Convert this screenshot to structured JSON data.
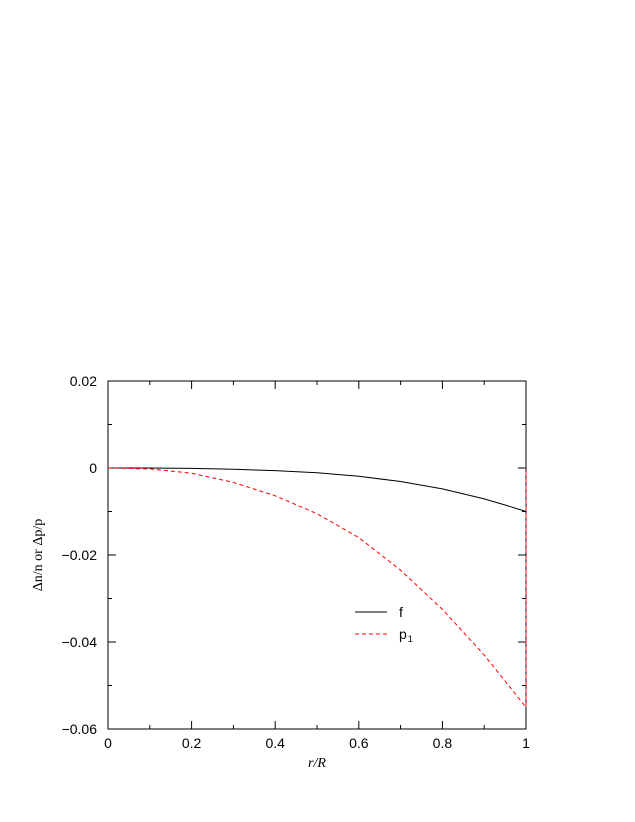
{
  "chart_data": {
    "type": "line",
    "xlabel": "r/R",
    "ylabel": "Δn/n or Δp/p",
    "xlim": [
      0,
      1
    ],
    "ylim": [
      -0.06,
      0.02
    ],
    "x_ticks": [
      "0",
      "0.2",
      "0.4",
      "0.6",
      "0.8",
      "1"
    ],
    "y_ticks": [
      "0.02",
      "0",
      "−0.02",
      "−0.04",
      "−0.06"
    ],
    "grid": false,
    "legend_position": "center-right",
    "series": [
      {
        "name": "f",
        "label_main": "f",
        "label_sub": "",
        "color": "#000000",
        "dash": "solid",
        "x": [
          0,
          0.1,
          0.2,
          0.3,
          0.4,
          0.5,
          0.6,
          0.7,
          0.8,
          0.9,
          0.95,
          1.0,
          1.0
        ],
        "y": [
          0,
          -1e-05,
          -0.0001,
          -0.0003,
          -0.0006,
          -0.0011,
          -0.0019,
          -0.0031,
          -0.0048,
          -0.0071,
          -0.0085,
          -0.01,
          0
        ]
      },
      {
        "name": "p1",
        "label_main": "p",
        "label_sub": "1",
        "color": "#ff0000",
        "dash": "dashed",
        "x": [
          0,
          0.1,
          0.2,
          0.3,
          0.4,
          0.5,
          0.6,
          0.7,
          0.8,
          0.9,
          0.95,
          1.0,
          1.0
        ],
        "y": [
          0,
          -0.0002,
          -0.0012,
          -0.0033,
          -0.0064,
          -0.0105,
          -0.016,
          -0.0235,
          -0.0325,
          -0.043,
          -0.049,
          -0.055,
          0
        ]
      }
    ]
  }
}
